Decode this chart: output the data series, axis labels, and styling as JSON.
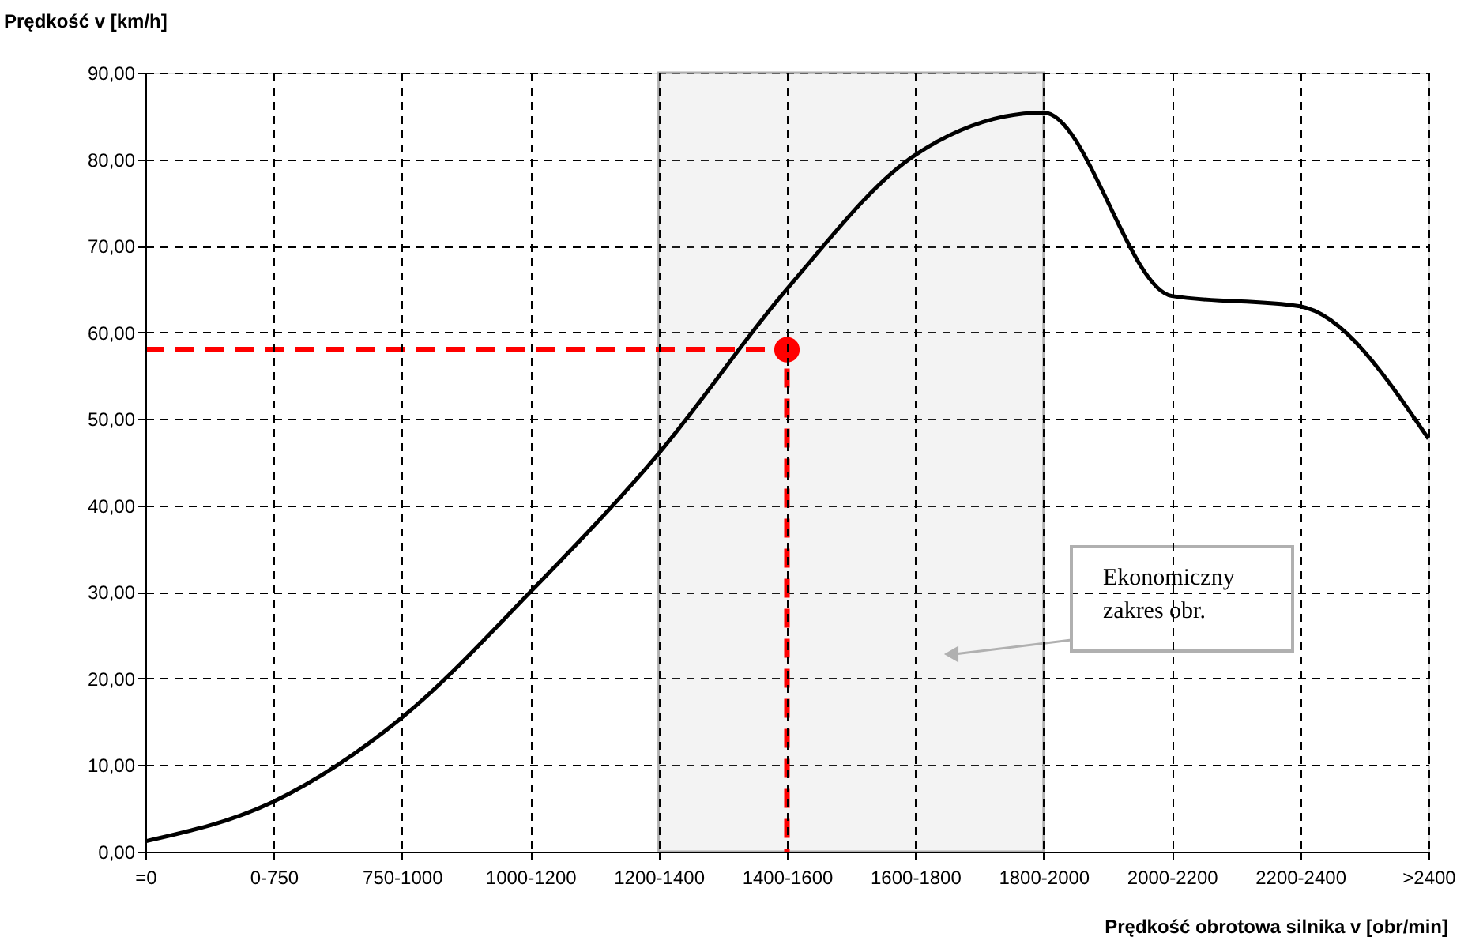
{
  "chart_data": {
    "type": "line",
    "xlabel": "Prędkość obrotowa silnika v [obr/min]",
    "ylabel": "Prędkość v [km/h]",
    "categories": [
      "=0",
      "0-750",
      "750-1000",
      "1000-1200",
      "1200-1400",
      "1400-1600",
      "1600-1800",
      "1800-2000",
      "2000-2200",
      "2200-2400",
      ">2400"
    ],
    "series": [
      {
        "color": "#000000",
        "values": [
          1.2,
          5.8,
          15.5,
          30,
          46,
          65,
          80.5,
          85.4,
          64.2,
          63,
          47.7
        ]
      },
      {
        "type": "line",
        "color": "#ff0000",
        "line_style": "dashed",
        "x": [
          "=0",
          "1400-1600",
          "1400-1600"
        ],
        "values": [
          58,
          58,
          0
        ]
      },
      {
        "type": "scatter",
        "color": "#ff0000",
        "marker": "circle",
        "x": [
          "1400-1600"
        ],
        "values": [
          58
        ]
      }
    ],
    "bands": [
      {
        "axis": "x",
        "from": "1200-1400",
        "to": "1800-2000",
        "label": "Ekonomiczny\nzakres obr.",
        "color": "#b0b0b0"
      }
    ],
    "ylim": [
      0,
      90
    ],
    "yticks": [
      {
        "value": 0,
        "label": "0,00"
      },
      {
        "value": 10,
        "label": "10,00"
      },
      {
        "value": 20,
        "label": "20,00"
      },
      {
        "value": 30,
        "label": "30,00"
      },
      {
        "value": 40,
        "label": "40,00"
      },
      {
        "value": 50,
        "label": "50,00"
      },
      {
        "value": 60,
        "label": "60,00"
      },
      {
        "value": 70,
        "label": "70,00"
      },
      {
        "value": 80,
        "label": "80,00"
      },
      {
        "value": 90,
        "label": "90,00"
      }
    ],
    "grid": true
  }
}
